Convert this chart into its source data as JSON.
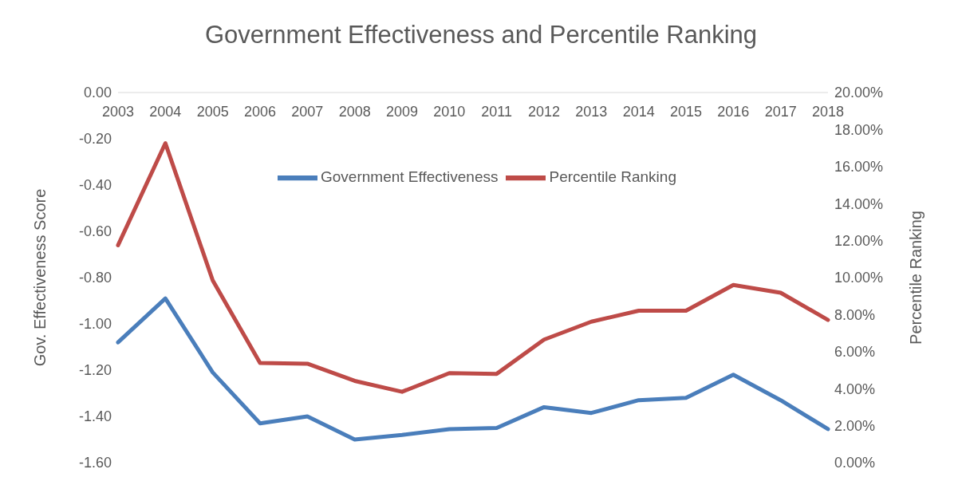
{
  "chart_data": {
    "type": "line",
    "title": "Government Effectiveness and Percentile Ranking",
    "ylabel": "Gov. Effectiveness Score",
    "y2label": "Percentile Ranking",
    "categories": [
      "2003",
      "2004",
      "2005",
      "2006",
      "2007",
      "2008",
      "2009",
      "2010",
      "2011",
      "2012",
      "2013",
      "2014",
      "2015",
      "2016",
      "2017",
      "2018"
    ],
    "series": [
      {
        "name": "Government Effectiveness",
        "color": "#4a7ebb",
        "values": [
          -1.08,
          -0.89,
          -1.21,
          -1.43,
          -1.4,
          -1.5,
          -1.48,
          -1.455,
          -1.45,
          -1.36,
          -1.385,
          -1.33,
          -1.32,
          -1.22,
          -1.33,
          -1.455
        ]
      },
      {
        "name": "Percentile Ranking",
        "color": "#be4b48",
        "axis": "y2",
        "values": [
          11.75,
          17.26,
          9.85,
          5.39,
          5.35,
          4.42,
          3.83,
          4.84,
          4.8,
          6.65,
          7.62,
          8.21,
          8.21,
          9.6,
          9.18,
          7.71
        ]
      }
    ],
    "ylim": [
      -1.6,
      0
    ],
    "yticks": [
      {
        "value": -1.6,
        "label": "-1.60"
      },
      {
        "value": -1.4,
        "label": "-1.40"
      },
      {
        "value": -1.2,
        "label": "-1.20"
      },
      {
        "value": -1.0,
        "label": "-1.00"
      },
      {
        "value": -0.8,
        "label": "-0.80"
      },
      {
        "value": -0.6,
        "label": "-0.60"
      },
      {
        "value": -0.4,
        "label": "-0.40"
      },
      {
        "value": -0.2,
        "label": "-0.20"
      },
      {
        "value": 0,
        "label": "0.00"
      }
    ],
    "y2lim": [
      0,
      20
    ],
    "y2ticks": [
      {
        "value": 0,
        "label": "0.00%"
      },
      {
        "value": 2,
        "label": "2.00%"
      },
      {
        "value": 4,
        "label": "4.00%"
      },
      {
        "value": 6,
        "label": "6.00%"
      },
      {
        "value": 8,
        "label": "8.00%"
      },
      {
        "value": 10,
        "label": "10.00%"
      },
      {
        "value": 12,
        "label": "12.00%"
      },
      {
        "value": 14,
        "label": "14.00%"
      },
      {
        "value": 16,
        "label": "16.00%"
      },
      {
        "value": 18,
        "label": "18.00%"
      },
      {
        "value": 20,
        "label": "20.00%"
      }
    ],
    "grid": false,
    "legend": "top",
    "marker": "none",
    "line_style": "solid"
  }
}
